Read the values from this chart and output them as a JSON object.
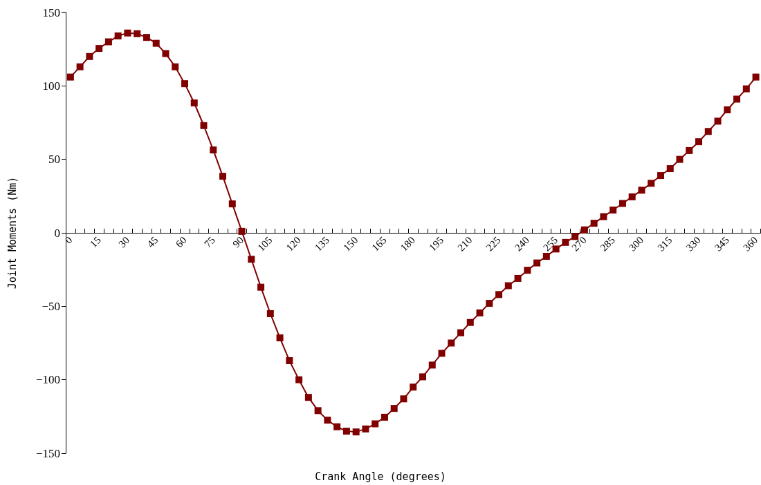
{
  "chart_data": {
    "type": "line",
    "xlabel": "Crank Angle (degrees)",
    "ylabel": "Joint Moments (Nm)",
    "categories": [
      "0",
      null,
      null,
      "15",
      null,
      null,
      "30",
      null,
      null,
      "45",
      null,
      null,
      "60",
      null,
      null,
      "75",
      null,
      null,
      "90",
      null,
      null,
      "105",
      null,
      null,
      "120",
      null,
      null,
      "135",
      null,
      null,
      "150",
      null,
      null,
      "165",
      null,
      null,
      "180",
      null,
      null,
      "195",
      null,
      null,
      "210",
      null,
      null,
      "225",
      null,
      null,
      "240",
      null,
      null,
      "255",
      null,
      null,
      "270",
      null,
      null,
      "285",
      null,
      null,
      "300",
      null,
      null,
      "315",
      null,
      null,
      "330",
      null,
      null,
      "345",
      null,
      null,
      "360"
    ],
    "series": [
      {
        "color": "#800000",
        "values": [
          106,
          113,
          120,
          125.5,
          130,
          134,
          136,
          135.5,
          133,
          129,
          122,
          113,
          101.5,
          88.4,
          73,
          56.4,
          38.5,
          19.7,
          1,
          -18,
          -37,
          -55,
          -71.5,
          -87,
          -100,
          -112,
          -121,
          -127.5,
          -132,
          -135,
          -135.5,
          -133.5,
          -130,
          -125.5,
          -119.5,
          -113,
          -105,
          -98,
          -90,
          -82,
          -75,
          -68,
          -61,
          -54.5,
          -48,
          -42,
          -36,
          -31,
          -25.5,
          -20.5,
          -16,
          -11,
          -6.5,
          -2.5,
          2,
          6.5,
          11,
          15.5,
          20,
          24.5,
          29,
          33.7,
          39,
          43.7,
          50,
          56,
          62,
          69,
          76,
          83.7,
          91,
          98,
          106
        ]
      }
    ],
    "ylim": [
      -150,
      150
    ],
    "yticks": [
      -150,
      -100,
      -50,
      0,
      50,
      100,
      150
    ],
    "marker": "square",
    "line_style": "solid"
  }
}
